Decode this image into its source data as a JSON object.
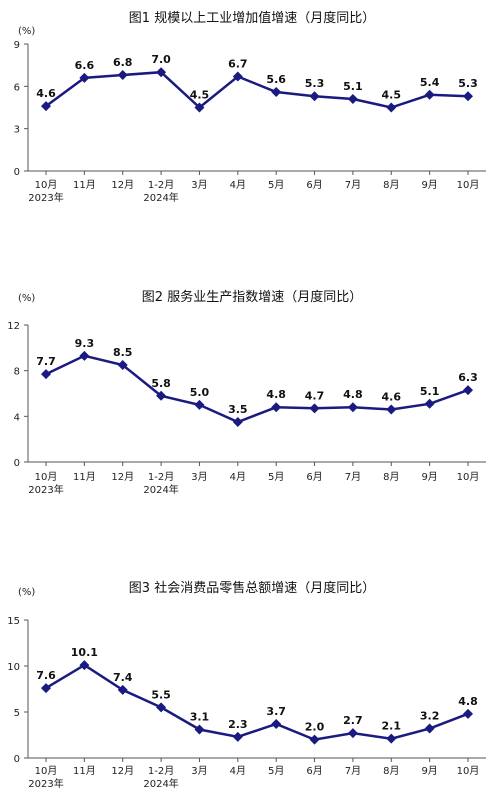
{
  "chart_data": [
    {
      "type": "line",
      "title": "图1   规模以上工业增加值增速（月度同比）",
      "unit": "(%)",
      "ylim": [
        0,
        9
      ],
      "yticks": [
        "0",
        "3",
        "6",
        "9"
      ],
      "categories": [
        "10月",
        "11月",
        "12月",
        "1-2月",
        "3月",
        "4月",
        "5月",
        "6月",
        "7月",
        "8月",
        "9月",
        "10月"
      ],
      "year_labels": [
        {
          "index": 0,
          "text": "2023年"
        },
        {
          "index": 3,
          "text": "2024年"
        }
      ],
      "values": [
        4.6,
        6.6,
        6.8,
        7.0,
        4.5,
        6.7,
        5.6,
        5.3,
        5.1,
        4.5,
        5.4,
        5.3
      ],
      "data_labels": [
        "4.6",
        "6.6",
        "6.8",
        "7.0",
        "4.5",
        "6.7",
        "5.6",
        "5.3",
        "5.1",
        "4.5",
        "5.4",
        "5.3"
      ],
      "color": "#1a1a80"
    },
    {
      "type": "line",
      "title": "图2   服务业生产指数增速（月度同比）",
      "unit": "(%)",
      "ylim": [
        0,
        12
      ],
      "yticks": [
        "0",
        "4",
        "8",
        "12"
      ],
      "categories": [
        "10月",
        "11月",
        "12月",
        "1-2月",
        "3月",
        "4月",
        "5月",
        "6月",
        "7月",
        "8月",
        "9月",
        "10月"
      ],
      "year_labels": [
        {
          "index": 0,
          "text": "2023年"
        },
        {
          "index": 3,
          "text": "2024年"
        }
      ],
      "values": [
        7.7,
        9.3,
        8.5,
        5.8,
        5.0,
        3.5,
        4.8,
        4.7,
        4.8,
        4.6,
        5.1,
        6.3
      ],
      "data_labels": [
        "7.7",
        "9.3",
        "8.5",
        "5.8",
        "5.0",
        "3.5",
        "4.8",
        "4.7",
        "4.8",
        "4.6",
        "5.1",
        "6.3"
      ],
      "color": "#1a1a80"
    },
    {
      "type": "line",
      "title": "图3   社会消费品零售总额增速（月度同比）",
      "unit": "(%)",
      "ylim": [
        0,
        15
      ],
      "yticks": [
        "0",
        "5",
        "10",
        "15"
      ],
      "categories": [
        "10月",
        "11月",
        "12月",
        "1-2月",
        "3月",
        "4月",
        "5月",
        "6月",
        "7月",
        "8月",
        "9月",
        "10月"
      ],
      "year_labels": [
        {
          "index": 0,
          "text": "2023年"
        },
        {
          "index": 3,
          "text": "2024年"
        }
      ],
      "values": [
        7.6,
        10.1,
        7.4,
        5.5,
        3.1,
        2.3,
        3.7,
        2.0,
        2.7,
        2.1,
        3.2,
        4.8
      ],
      "data_labels": [
        "7.6",
        "10.1",
        "7.4",
        "5.5",
        "3.1",
        "2.3",
        "3.7",
        "2.0",
        "2.7",
        "2.1",
        "3.2",
        "4.8"
      ],
      "color": "#1a1a80"
    }
  ]
}
